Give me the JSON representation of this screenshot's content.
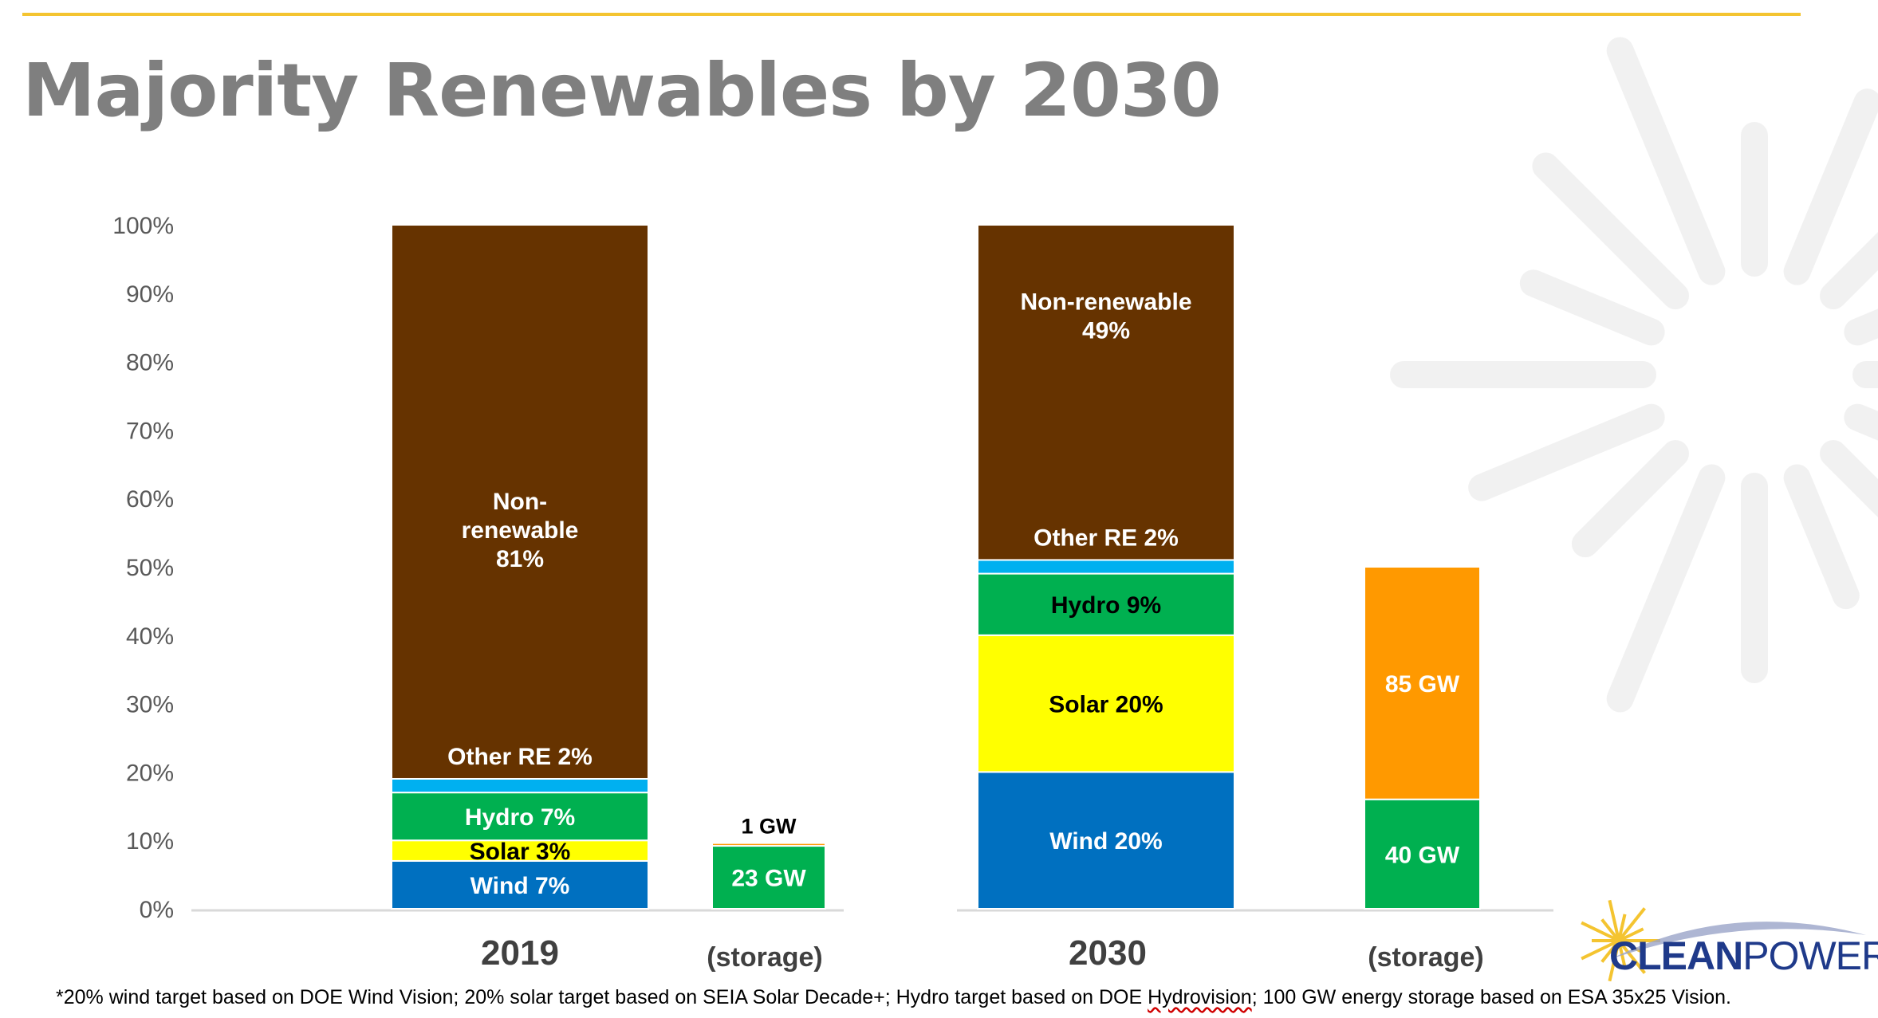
{
  "page": {
    "title": "Majority Renewables by 2030",
    "footnote_parts": [
      "*20% wind target based on DOE Wind Vision; 20% solar target based on SEIA Solar Decade+; Hydro target based on DOE ",
      "Hydrovision",
      "; 100 GW energy storage based on  ESA 35x25 Vision."
    ],
    "logo": {
      "bold": "CLEAN",
      "light": "POWER"
    },
    "colors": {
      "accent_rule": "#f4c430",
      "title": "#7f7f7f",
      "wind": "#0070c0",
      "solar": "#ffff00",
      "hydro": "#00b050",
      "other_re": "#00b0f0",
      "non_renewable": "#663300",
      "storage_existing": "#00b050",
      "storage_new": "#ff9900",
      "logo_blue": "#1f3a8a",
      "logo_sun": "#f4c430"
    }
  },
  "chart_data": {
    "type": "bar",
    "stacked": true,
    "yticks": [
      "0%",
      "10%",
      "20%",
      "30%",
      "40%",
      "50%",
      "60%",
      "70%",
      "80%",
      "90%",
      "100%"
    ],
    "ylim": [
      0,
      100
    ],
    "groups": [
      {
        "label": "2019",
        "mix": [
          {
            "name": "Wind",
            "label": "Wind 7%",
            "value": 7
          },
          {
            "name": "Solar",
            "label": "Solar 3%",
            "value": 3
          },
          {
            "name": "Hydro",
            "label": "Hydro 7%",
            "value": 7
          },
          {
            "name": "Other RE",
            "label": "Other RE 2%",
            "value": 2
          },
          {
            "name": "Non-renewable",
            "label_lines": [
              "Non-",
              "renewable",
              "81%"
            ],
            "value": 81
          }
        ],
        "storage": {
          "label": "(storage)",
          "segments": [
            {
              "label": "23 GW",
              "value": 23
            },
            {
              "label": "1 GW",
              "value": 1
            }
          ]
        }
      },
      {
        "label": "2030",
        "mix": [
          {
            "name": "Wind",
            "label": "Wind 20%",
            "value": 20
          },
          {
            "name": "Solar",
            "label": "Solar 20%",
            "value": 20
          },
          {
            "name": "Hydro",
            "label": "Hydro 9%",
            "value": 9
          },
          {
            "name": "Other RE",
            "label": "Other RE 2%",
            "value": 2
          },
          {
            "name": "Non-renewable",
            "label_lines": [
              "Non-renewable",
              "49%"
            ],
            "value": 49
          }
        ],
        "storage": {
          "label": "(storage)",
          "segments": [
            {
              "label": "40 GW",
              "value": 40
            },
            {
              "label": "85 GW",
              "value": 85
            }
          ]
        }
      }
    ]
  }
}
